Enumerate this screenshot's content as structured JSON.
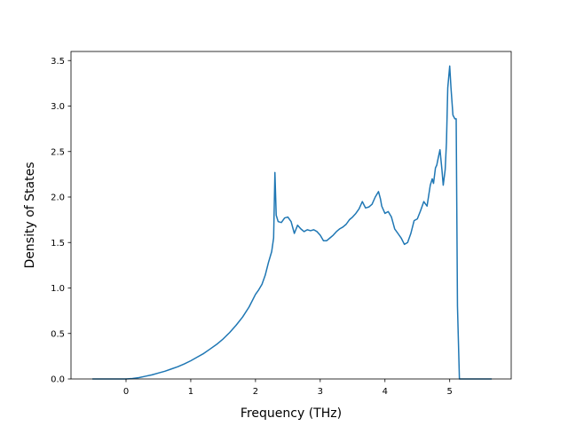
{
  "chart_data": {
    "type": "line",
    "title": "",
    "xlabel": "Frequency (THz)",
    "ylabel": "Density of States",
    "xlim": [
      -0.85,
      5.95
    ],
    "ylim": [
      0,
      3.6
    ],
    "xticks": [
      0,
      1,
      2,
      3,
      4,
      5
    ],
    "yticks": [
      0.0,
      0.5,
      1.0,
      1.5,
      2.0,
      2.5,
      3.0,
      3.5
    ],
    "xtick_labels": [
      "0",
      "1",
      "2",
      "3",
      "4",
      "5"
    ],
    "ytick_labels": [
      "0.0",
      "0.5",
      "1.0",
      "1.5",
      "2.0",
      "2.5",
      "3.0",
      "3.5"
    ],
    "grid": false,
    "legend": "none",
    "series": [
      {
        "color": "#1f77b4",
        "x": [
          -0.52,
          -0.3,
          -0.1,
          0.0,
          0.1,
          0.2,
          0.3,
          0.4,
          0.5,
          0.6,
          0.7,
          0.8,
          0.9,
          1.0,
          1.1,
          1.2,
          1.3,
          1.4,
          1.5,
          1.6,
          1.7,
          1.8,
          1.9,
          2.0,
          2.05,
          2.1,
          2.15,
          2.2,
          2.25,
          2.28,
          2.3,
          2.32,
          2.35,
          2.4,
          2.45,
          2.5,
          2.55,
          2.6,
          2.65,
          2.7,
          2.75,
          2.8,
          2.85,
          2.9,
          2.95,
          3.0,
          3.05,
          3.1,
          3.15,
          3.2,
          3.25,
          3.3,
          3.35,
          3.4,
          3.45,
          3.5,
          3.55,
          3.6,
          3.65,
          3.7,
          3.75,
          3.8,
          3.85,
          3.9,
          3.93,
          3.95,
          4.0,
          4.05,
          4.1,
          4.15,
          4.2,
          4.25,
          4.3,
          4.35,
          4.4,
          4.45,
          4.5,
          4.55,
          4.6,
          4.65,
          4.7,
          4.73,
          4.75,
          4.78,
          4.8,
          4.82,
          4.85,
          4.88,
          4.9,
          4.93,
          4.95,
          4.97,
          5.0,
          5.02,
          5.05,
          5.08,
          5.1,
          5.12,
          5.15,
          5.2,
          5.4,
          5.65
        ],
        "y": [
          0.0,
          0.0,
          0.0,
          0.0,
          0.005,
          0.015,
          0.03,
          0.045,
          0.065,
          0.085,
          0.11,
          0.135,
          0.165,
          0.2,
          0.24,
          0.28,
          0.33,
          0.38,
          0.44,
          0.51,
          0.59,
          0.68,
          0.79,
          0.93,
          0.98,
          1.04,
          1.14,
          1.28,
          1.4,
          1.55,
          2.27,
          1.8,
          1.73,
          1.72,
          1.77,
          1.78,
          1.73,
          1.6,
          1.69,
          1.65,
          1.62,
          1.64,
          1.63,
          1.64,
          1.62,
          1.58,
          1.52,
          1.52,
          1.55,
          1.58,
          1.62,
          1.65,
          1.67,
          1.7,
          1.75,
          1.78,
          1.82,
          1.87,
          1.95,
          1.88,
          1.89,
          1.92,
          2.0,
          2.06,
          1.98,
          1.9,
          1.82,
          1.84,
          1.78,
          1.65,
          1.6,
          1.55,
          1.48,
          1.5,
          1.6,
          1.74,
          1.76,
          1.85,
          1.95,
          1.9,
          2.13,
          2.2,
          2.15,
          2.32,
          2.35,
          2.42,
          2.52,
          2.3,
          2.13,
          2.3,
          2.6,
          3.2,
          3.44,
          3.2,
          2.9,
          2.86,
          2.86,
          0.8,
          0.0,
          0.0,
          0.0,
          0.0
        ]
      }
    ]
  }
}
